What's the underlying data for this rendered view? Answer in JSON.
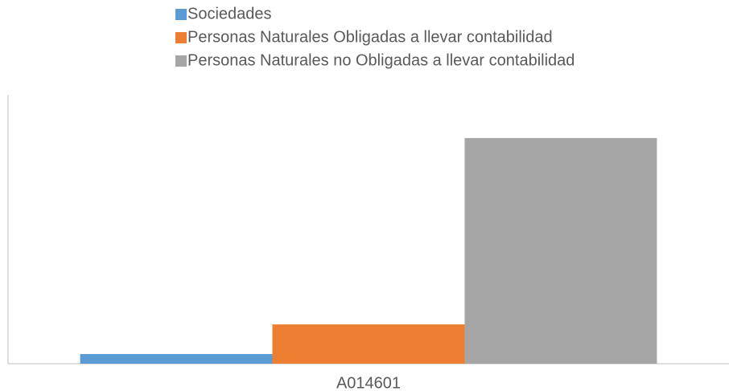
{
  "chart_data": {
    "type": "bar",
    "categories": [
      "A014601"
    ],
    "series": [
      {
        "name": "Sociedades",
        "color": "#5b9bd5",
        "values": [
          3.6
        ]
      },
      {
        "name": "Personas Naturales Obligadas a llevar contabilidad",
        "color": "#ed7d31",
        "values": [
          14.6
        ]
      },
      {
        "name": "Personas Naturales no Obligadas a llevar contabilidad",
        "color": "#a5a5a5",
        "values": [
          83.9
        ]
      }
    ],
    "ylim": [
      0,
      100
    ],
    "legend": "top"
  }
}
